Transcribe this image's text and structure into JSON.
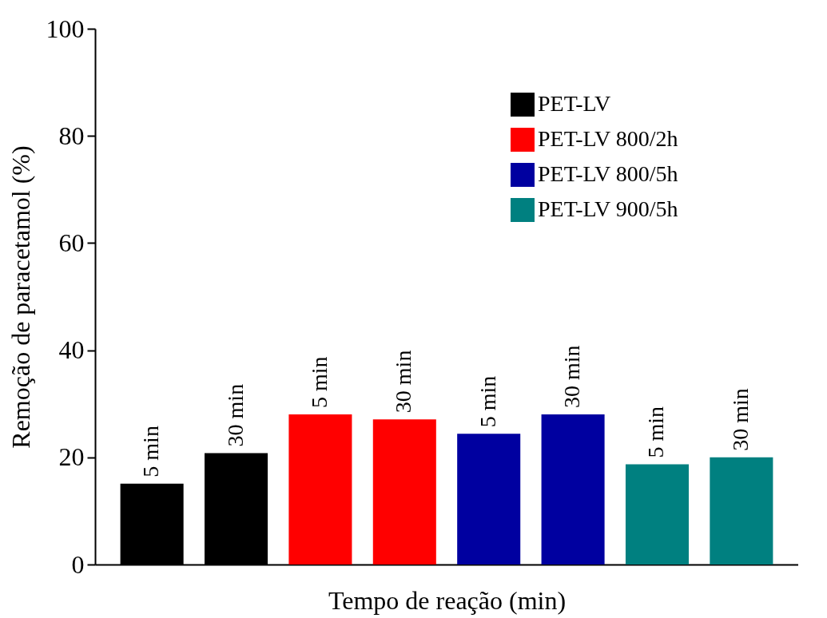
{
  "chart_data": {
    "type": "bar",
    "xlabel": "Tempo de reação (min)",
    "ylabel": "Remoção de paracetamol (%)",
    "categories": [
      null,
      null,
      null,
      null,
      null,
      null,
      null,
      null
    ],
    "series": [
      {
        "name": "PET-LV",
        "color": "#000000",
        "values": [
          15.1,
          20.8,
          null,
          null,
          null,
          null,
          null,
          null
        ]
      },
      {
        "name": "PET-LV 800/2h",
        "color": "#ff0000",
        "values": [
          null,
          null,
          28.0,
          27.1,
          null,
          null,
          null,
          null
        ]
      },
      {
        "name": "PET-LV 800/5h",
        "color": "#0000a0",
        "values": [
          null,
          null,
          null,
          null,
          24.4,
          28.0,
          null,
          null
        ]
      },
      {
        "name": "PET-LV 900/5h",
        "color": "#008080",
        "values": [
          null,
          null,
          null,
          null,
          null,
          null,
          18.7,
          20.0
        ]
      }
    ],
    "annotations": [
      "5 min",
      "30 min",
      "5 min",
      "30 min",
      "5 min",
      "30 min",
      "5 min",
      "30 min"
    ],
    "ylim": [
      0,
      100
    ],
    "yticks": [
      0,
      20,
      40,
      60,
      80,
      100
    ],
    "grid": false,
    "legend": "top right",
    "tick_labels": "y"
  }
}
